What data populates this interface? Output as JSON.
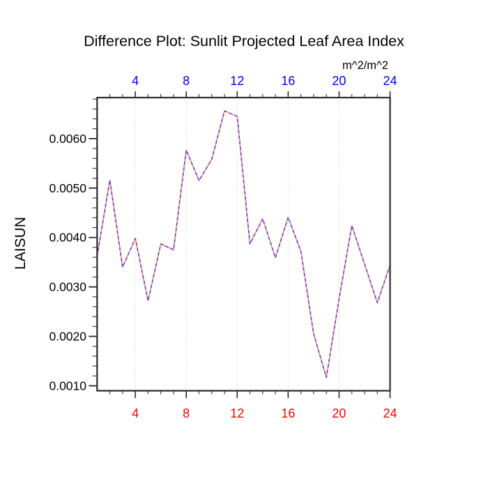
{
  "title": "Difference Plot: Sunlit Projected Leaf Area Index",
  "axes": {
    "y_axis_title": "LAISUN",
    "top_units_label": "m^2/m^2",
    "bottom_label_color": "#ff0000",
    "top_label_color": "#0000ff",
    "left_label_color": "#000000",
    "frame_color": "#2a2a2a",
    "gridline_color": "#c2c2c2"
  },
  "chart_data": {
    "type": "line",
    "title": "Difference Plot: Sunlit Projected Leaf Area Index",
    "xlabel": "",
    "ylabel": "LAISUN",
    "units_label": "m^2/m^2",
    "x": [
      1,
      2,
      3,
      4,
      5,
      6,
      7,
      8,
      9,
      10,
      11,
      12,
      13,
      14,
      15,
      16,
      17,
      18,
      19,
      20,
      21,
      22,
      23,
      24
    ],
    "values": [
      0.00362,
      0.00516,
      0.0034,
      0.00398,
      0.00272,
      0.00387,
      0.00375,
      0.00577,
      0.00515,
      0.00558,
      0.00656,
      0.00645,
      0.00387,
      0.00438,
      0.00359,
      0.00441,
      0.00372,
      0.00205,
      0.00117,
      0.00276,
      0.00424,
      0.00346,
      0.00268,
      0.00344
    ],
    "line_style": "alternating red/blue dashes (two overlapping dashed curves)",
    "line_colors": [
      "#ff8080",
      "#4545de"
    ],
    "xlim": [
      1,
      24
    ],
    "ylim": [
      0.0009,
      0.00683
    ],
    "x_ticks": {
      "values": [
        4,
        8,
        12,
        16,
        20,
        24
      ],
      "labels": [
        "4",
        "8",
        "12",
        "16",
        "20",
        "24"
      ]
    },
    "y_ticks": {
      "values": [
        0.001,
        0.002,
        0.003,
        0.004,
        0.005,
        0.006
      ],
      "labels": [
        "0.0010",
        "0.0020",
        "0.0030",
        "0.0040",
        "0.0050",
        "0.0060"
      ]
    },
    "x_minor_step": 1,
    "y_minor_step": 0.0002,
    "grid_x_values": [
      4,
      8,
      12,
      16,
      20
    ],
    "grid": "vertical dotted gridlines at major x ticks",
    "legend_position": "none"
  }
}
